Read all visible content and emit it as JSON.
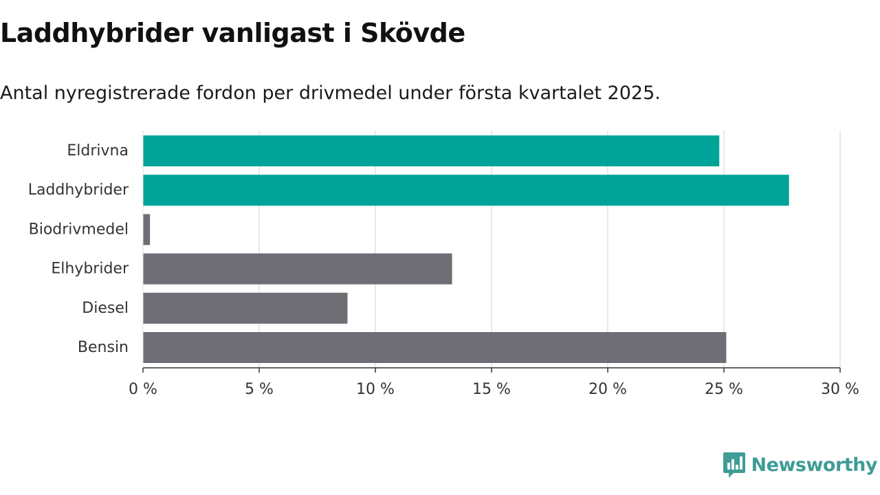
{
  "header": {
    "title": "Laddhybrider vanligast i Skövde",
    "subtitle": "Antal nyregistrerade fordon per drivmedel under första kvartalet 2025."
  },
  "brand": {
    "name": "Newsworthy",
    "logo_icon": "bar-chart-speech-bubble-icon",
    "color": "#3f9c96"
  },
  "chart_data": {
    "type": "bar",
    "orientation": "horizontal",
    "categories": [
      "Eldrivna",
      "Laddhybrider",
      "Biodrivmedel",
      "Elhybrider",
      "Diesel",
      "Bensin"
    ],
    "values": [
      24.8,
      27.8,
      0.3,
      13.3,
      8.8,
      25.1
    ],
    "unit": "%",
    "xlim": [
      0,
      30
    ],
    "xticks": [
      0,
      5,
      10,
      15,
      20,
      25,
      30
    ],
    "xtick_labels": [
      "0 %",
      "5 %",
      "10 %",
      "15 %",
      "20 %",
      "25 %",
      "30 %"
    ],
    "bar_colors": [
      "#00a398",
      "#00a398",
      "#6f6e74",
      "#6f6e74",
      "#6f6e74",
      "#6f6e74"
    ],
    "grid": true
  }
}
